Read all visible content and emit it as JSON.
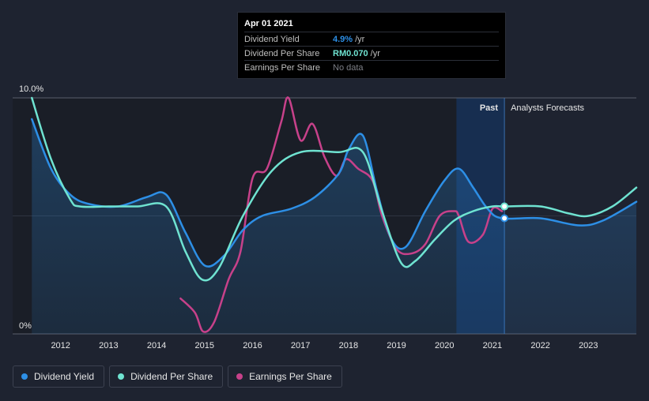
{
  "chart_data": {
    "type": "line",
    "x_ticks": [
      "2012",
      "2013",
      "2014",
      "2015",
      "2016",
      "2017",
      "2018",
      "2019",
      "2020",
      "2021",
      "2022",
      "2023"
    ],
    "y_axis": {
      "labels": [
        "10.0%",
        "0%"
      ],
      "ylim": [
        0,
        10
      ]
    },
    "regions": {
      "past_label": "Past",
      "forecast_label": "Analysts Forecasts"
    },
    "series": [
      {
        "name": "Dividend Yield",
        "color": "#2d8fe6",
        "points": [
          [
            2011.4,
            9.1
          ],
          [
            2011.8,
            7.0
          ],
          [
            2012.2,
            5.9
          ],
          [
            2012.6,
            5.5
          ],
          [
            2013.2,
            5.4
          ],
          [
            2013.8,
            5.8
          ],
          [
            2014.2,
            5.9
          ],
          [
            2014.6,
            4.3
          ],
          [
            2015.0,
            2.9
          ],
          [
            2015.4,
            3.3
          ],
          [
            2015.8,
            4.4
          ],
          [
            2016.2,
            5.0
          ],
          [
            2016.8,
            5.3
          ],
          [
            2017.3,
            5.8
          ],
          [
            2017.8,
            6.8
          ],
          [
            2018.0,
            7.8
          ],
          [
            2018.3,
            8.4
          ],
          [
            2018.6,
            6.0
          ],
          [
            2018.9,
            4.0
          ],
          [
            2019.2,
            3.7
          ],
          [
            2019.6,
            5.2
          ],
          [
            2020.0,
            6.5
          ],
          [
            2020.3,
            7.0
          ],
          [
            2020.6,
            6.2
          ],
          [
            2020.9,
            5.3
          ],
          [
            2021.2,
            4.9
          ],
          [
            2022.0,
            4.9
          ],
          [
            2022.8,
            4.6
          ],
          [
            2023.3,
            4.8
          ],
          [
            2024.0,
            5.6
          ]
        ],
        "forecast_from": 2021.25
      },
      {
        "name": "Dividend Per Share",
        "color": "#6fe3d1",
        "points": [
          [
            2011.4,
            10.0
          ],
          [
            2011.8,
            7.4
          ],
          [
            2012.2,
            5.7
          ],
          [
            2012.4,
            5.4
          ],
          [
            2013.0,
            5.4
          ],
          [
            2013.6,
            5.4
          ],
          [
            2014.2,
            5.4
          ],
          [
            2014.6,
            3.5
          ],
          [
            2014.95,
            2.3
          ],
          [
            2015.3,
            2.8
          ],
          [
            2015.8,
            5.0
          ],
          [
            2016.4,
            6.9
          ],
          [
            2017.0,
            7.7
          ],
          [
            2017.8,
            7.7
          ],
          [
            2018.3,
            7.7
          ],
          [
            2018.7,
            5.2
          ],
          [
            2019.1,
            3.0
          ],
          [
            2019.4,
            3.1
          ],
          [
            2019.8,
            4.0
          ],
          [
            2020.2,
            4.8
          ],
          [
            2020.6,
            5.2
          ],
          [
            2021.0,
            5.4
          ],
          [
            2021.25,
            5.4
          ],
          [
            2022.0,
            5.4
          ],
          [
            2022.6,
            5.1
          ],
          [
            2023.0,
            5.0
          ],
          [
            2023.5,
            5.4
          ],
          [
            2024.0,
            6.2
          ]
        ],
        "forecast_from": 2021.25
      },
      {
        "name": "Earnings Per Share",
        "color": "#c7418a",
        "points": [
          [
            2014.5,
            1.5
          ],
          [
            2014.8,
            0.9
          ],
          [
            2014.97,
            0.1
          ],
          [
            2015.2,
            0.5
          ],
          [
            2015.5,
            2.3
          ],
          [
            2015.75,
            3.5
          ],
          [
            2016.0,
            6.6
          ],
          [
            2016.3,
            7.0
          ],
          [
            2016.6,
            9.0
          ],
          [
            2016.75,
            10.0
          ],
          [
            2017.0,
            8.2
          ],
          [
            2017.25,
            8.9
          ],
          [
            2017.5,
            7.5
          ],
          [
            2017.75,
            6.7
          ],
          [
            2017.95,
            7.4
          ],
          [
            2018.2,
            7.0
          ],
          [
            2018.5,
            6.5
          ],
          [
            2018.7,
            5.0
          ],
          [
            2019.0,
            3.6
          ],
          [
            2019.3,
            3.4
          ],
          [
            2019.6,
            3.8
          ],
          [
            2019.9,
            5.0
          ],
          [
            2020.2,
            5.2
          ],
          [
            2020.3,
            5.0
          ],
          [
            2020.5,
            3.9
          ],
          [
            2020.8,
            4.2
          ],
          [
            2021.0,
            5.3
          ],
          [
            2021.2,
            5.2
          ]
        ]
      }
    ]
  },
  "tooltip": {
    "date": "Apr 01 2021",
    "rows": [
      {
        "label": "Dividend Yield",
        "value": "4.9%",
        "unit": "/yr",
        "color": "#2d8fe6"
      },
      {
        "label": "Dividend Per Share",
        "value": "RM0.070",
        "unit": "/yr",
        "color": "#6fe3d1"
      },
      {
        "label": "Earnings Per Share",
        "value": "No data",
        "unit": "",
        "color": "#7d7f86"
      }
    ]
  },
  "legend": [
    {
      "label": "Dividend Yield",
      "color": "#2d8fe6"
    },
    {
      "label": "Dividend Per Share",
      "color": "#6fe3d1"
    },
    {
      "label": "Earnings Per Share",
      "color": "#c7418a"
    }
  ]
}
